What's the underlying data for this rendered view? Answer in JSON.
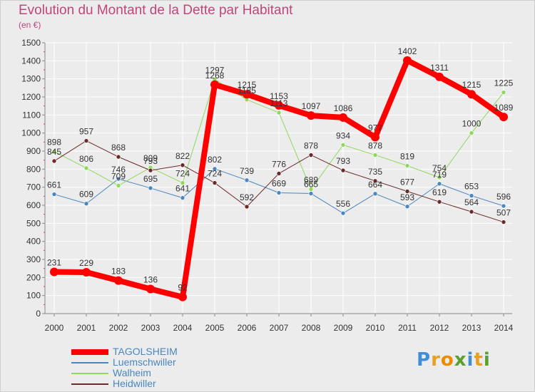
{
  "header": {
    "title": "Evolution du Montant de la Dette par Habitant",
    "subtitle": "(en €)"
  },
  "logo": {
    "text": "Proxiti",
    "colors": [
      "#3f8fd8",
      "#e8a020",
      "#f08a00",
      "#5aa02c",
      "#3f8fd8",
      "#e8a020",
      "#5aa02c"
    ]
  },
  "chart_data": {
    "type": "line",
    "title": "Evolution du Montant de la Dette par Habitant",
    "subtitle": "(en €)",
    "xlabel": "",
    "ylabel": "",
    "ylim": [
      0,
      1500
    ],
    "yticks": [
      0,
      100,
      200,
      300,
      400,
      500,
      600,
      700,
      800,
      900,
      1000,
      1100,
      1200,
      1300,
      1400,
      1500
    ],
    "grid": true,
    "legend_position": "bottom-left",
    "categories": [
      "2000",
      "2001",
      "2002",
      "2003",
      "2004",
      "2005",
      "2006",
      "2007",
      "2008",
      "2009",
      "2010",
      "2011",
      "2012",
      "2013",
      "2014"
    ],
    "series": [
      {
        "name": "Luemschwiller",
        "color": "#4a86c0",
        "width": 1,
        "values": [
          661,
          609,
          746,
          695,
          641,
          802,
          739,
          669,
          665,
          556,
          664,
          593,
          719,
          653,
          596
        ],
        "labels": [
          "661",
          "609",
          "746",
          "695",
          "641",
          "802",
          "739",
          "669",
          "665",
          "556",
          "664",
          "593",
          "719",
          "653",
          "596"
        ]
      },
      {
        "name": "Walheim",
        "color": "#8fd85a",
        "width": 1,
        "values": [
          898,
          806,
          709,
          809,
          724,
          1297,
          1185,
          1113,
          689,
          934,
          878,
          819,
          754,
          1000,
          1225
        ],
        "labels": [
          "898",
          "806",
          "709",
          "809",
          "724",
          "1297",
          "1185",
          "1113",
          "689",
          "934",
          "878",
          "819",
          "754",
          "1000",
          "1225"
        ]
      },
      {
        "name": "Heidwiller",
        "color": "#6b2a2a",
        "width": 1,
        "values": [
          845,
          957,
          868,
          793,
          822,
          724,
          592,
          776,
          878,
          793,
          735,
          677,
          619,
          564,
          507
        ],
        "labels": [
          "845",
          "957",
          "868",
          "793",
          "822",
          "724",
          "592",
          "776",
          "878",
          "793",
          "735",
          "677",
          "619",
          "564",
          "507"
        ]
      },
      {
        "name": "TAGOLSHEIM",
        "color": "#ff0000",
        "width": 8,
        "values": [
          231,
          229,
          183,
          136,
          92,
          1268,
          1215,
          1153,
          1097,
          1086,
          977,
          1402,
          1311,
          1215,
          1089
        ],
        "labels": [
          "231",
          "229",
          "183",
          "136",
          "92",
          "1268",
          "1215",
          "1153",
          "1097",
          "1086",
          "977",
          "1402",
          "1311",
          "1215",
          "1089"
        ]
      }
    ],
    "legend": [
      {
        "name": "TAGOLSHEIM",
        "color": "#ff0000",
        "label_color": "#4a86c0",
        "width": 8
      },
      {
        "name": "Luemschwiller",
        "color": "#4a86c0",
        "label_color": "#4a86c0",
        "width": 2
      },
      {
        "name": "Walheim",
        "color": "#8fd85a",
        "label_color": "#4a86c0",
        "width": 2
      },
      {
        "name": "Heidwiller",
        "color": "#6b2a2a",
        "label_color": "#4a86c0",
        "width": 2
      }
    ]
  }
}
